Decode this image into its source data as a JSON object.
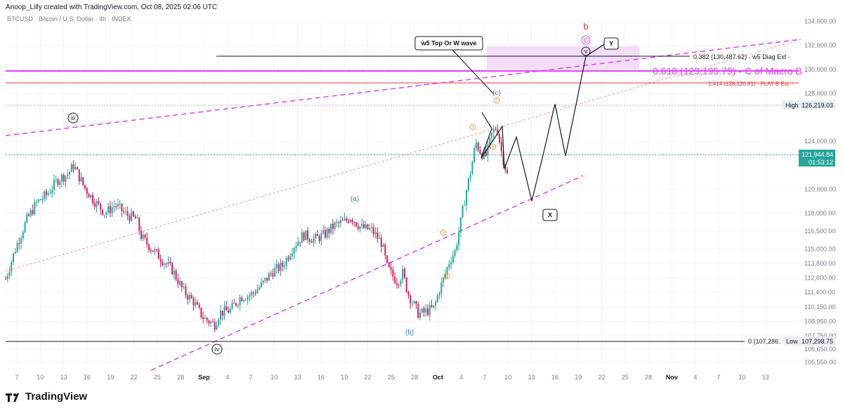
{
  "header": {
    "credit": "Anoop_Lilly created with TradingView.com, Oct 08, 2025 02:06 UTC",
    "symbol": "BTCUSD · Bitcoin / U.S. Dollar · 4h · INDEX"
  },
  "brand": {
    "name": "TradingView"
  },
  "colors": {
    "up": "#26a69a",
    "down": "#ef5350",
    "candle_bg_down": "#d81b60",
    "magenta": "#e040fb",
    "red_line": "#e53935",
    "wave_orange": "#f0a040",
    "wave_blue": "#3d7ac8",
    "zone": "#f3dcf7",
    "price_badge": "#26a69a",
    "grid": "#f0f3fa",
    "axis_text": "#787b86"
  },
  "chart_data": {
    "type": "candlestick",
    "title": "BTCUSD · Bitcoin / U.S. Dollar · 4h · INDEX",
    "y_ticks": [
      134000,
      132000,
      130000,
      128000,
      126219.03,
      124000,
      121944.84,
      120000,
      118000,
      116500,
      115000,
      113800,
      112600,
      111400,
      110150,
      108950,
      107750,
      106650,
      105550
    ],
    "y_tick_labels": [
      "134,000.00",
      "132,000.00",
      "130,000.00",
      "128,000.00",
      "",
      "124,000.00",
      "",
      "120,000.00",
      "118,000.00",
      "116,500.00",
      "115,000.00",
      "113,800.00",
      "112,600.00",
      "111,400.00",
      "110,150.00",
      "108,950.00",
      "107,750.00",
      "106,650.00",
      "105,550.00"
    ],
    "x_ticks": [
      "7",
      "10",
      "13",
      "16",
      "19",
      "22",
      "25",
      "28",
      "Sep",
      "4",
      "7",
      "10",
      "13",
      "16",
      "19",
      "22",
      "25",
      "28",
      "Oct",
      "4",
      "7",
      "10",
      "13",
      "16",
      "19",
      "22",
      "25",
      "28",
      "Nov",
      "4",
      "7",
      "10",
      "13"
    ],
    "price_path": [
      [
        0,
        112500
      ],
      [
        2,
        115200
      ],
      [
        4,
        117400
      ],
      [
        6,
        118900
      ],
      [
        8,
        119600
      ],
      [
        10,
        120800
      ],
      [
        12,
        121300
      ],
      [
        13,
        122000
      ],
      [
        15,
        120200
      ],
      [
        17,
        119000
      ],
      [
        19,
        118000
      ],
      [
        21,
        118700
      ],
      [
        23,
        117900
      ],
      [
        25,
        117500
      ],
      [
        26,
        116000
      ],
      [
        28,
        115000
      ],
      [
        30,
        114100
      ],
      [
        32,
        113200
      ],
      [
        34,
        111500
      ],
      [
        36,
        110600
      ],
      [
        37,
        109800
      ],
      [
        38,
        109200
      ],
      [
        40,
        108700
      ],
      [
        41,
        109700
      ],
      [
        43,
        109900
      ],
      [
        45,
        111000
      ],
      [
        47,
        111200
      ],
      [
        49,
        112000
      ],
      [
        51,
        113100
      ],
      [
        53,
        113600
      ],
      [
        55,
        115200
      ],
      [
        57,
        116200
      ],
      [
        59,
        115800
      ],
      [
        61,
        116200
      ],
      [
        63,
        117000
      ],
      [
        65,
        117300
      ],
      [
        66,
        117700
      ],
      [
        68,
        116800
      ],
      [
        70,
        116600
      ],
      [
        72,
        115500
      ],
      [
        73,
        113500
      ],
      [
        74,
        112800
      ],
      [
        75,
        112300
      ],
      [
        76,
        113000
      ],
      [
        77,
        111300
      ],
      [
        78,
        110500
      ],
      [
        79,
        109600
      ],
      [
        80,
        109700
      ],
      [
        81,
        109900
      ],
      [
        82,
        110100
      ],
      [
        83,
        111600
      ],
      [
        84,
        112700
      ],
      [
        85,
        114100
      ],
      [
        86,
        114800
      ],
      [
        87,
        117000
      ],
      [
        88,
        119500
      ],
      [
        89,
        121500
      ],
      [
        90,
        123900
      ],
      [
        91,
        123000
      ],
      [
        92,
        122800
      ],
      [
        93,
        124500
      ],
      [
        94,
        125300
      ],
      [
        95,
        122900
      ],
      [
        96,
        121200
      ]
    ],
    "series": [
      {
        "name": "price",
        "values": "price_path"
      }
    ],
    "levels": [
      {
        "label": "0.382 (130,487.62) · w5 Diag Ext ·",
        "value": 130487.62
      },
      {
        "label": "0.618 (129,195.79) • C of Macro B ·",
        "value": 129195.79
      },
      {
        "label": "1.414 (128,120.81) · FLAT B Ext. ·",
        "value": 128120.81
      },
      {
        "label": "0 (107,286.",
        "value": 107286
      },
      {
        "label": "High",
        "value": 126219.03
      },
      {
        "label": "Low",
        "value": 107298.75
      }
    ],
    "badges": {
      "high_label": "High",
      "high_value": "126,219.03",
      "last_value": "121,944.84",
      "countdown": "01:53:12",
      "low_label": "Low",
      "low_value": "107,298.75"
    },
    "annotations": {
      "callout": "w5 Top Or W wave",
      "b": "b",
      "C": "C",
      "v": "v",
      "Y": "Y",
      "X": "X",
      "iii": "iii",
      "iv": "iv",
      "a": "(a)",
      "b_small": "(b)",
      "c": "(c)",
      "w1": "1",
      "w2": "2",
      "w3": "3",
      "w4": "4",
      "w5": "5"
    },
    "ylim": [
      105000,
      134700
    ]
  }
}
